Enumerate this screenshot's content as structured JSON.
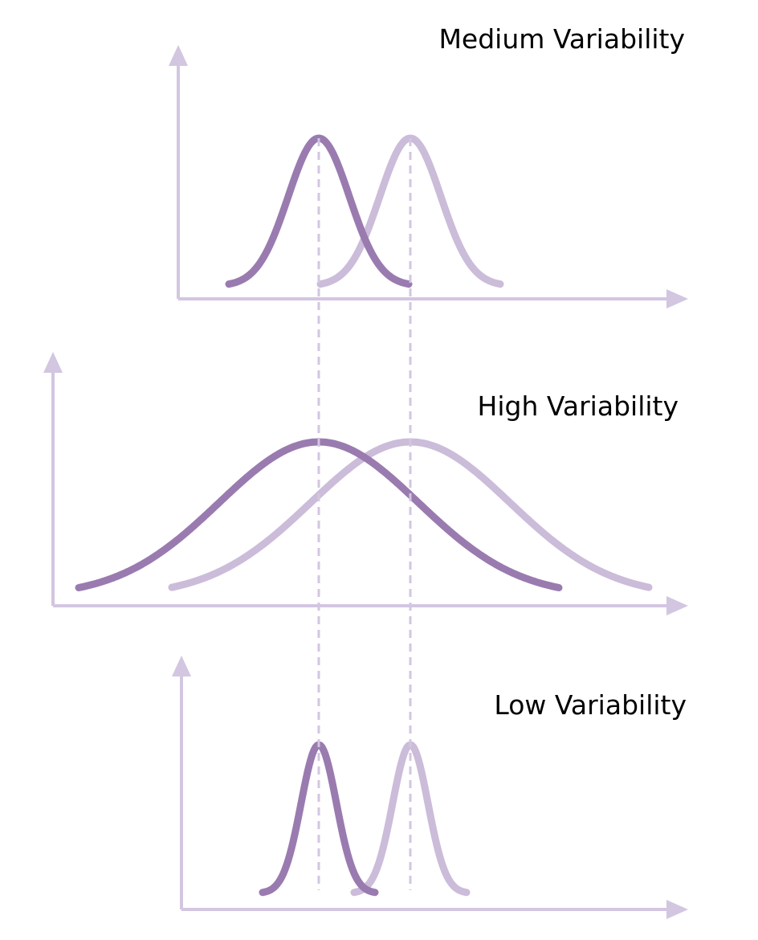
{
  "panels": [
    {
      "title": "Medium Variability"
    },
    {
      "title": "High Variability"
    },
    {
      "title": "Low Variability"
    }
  ]
}
